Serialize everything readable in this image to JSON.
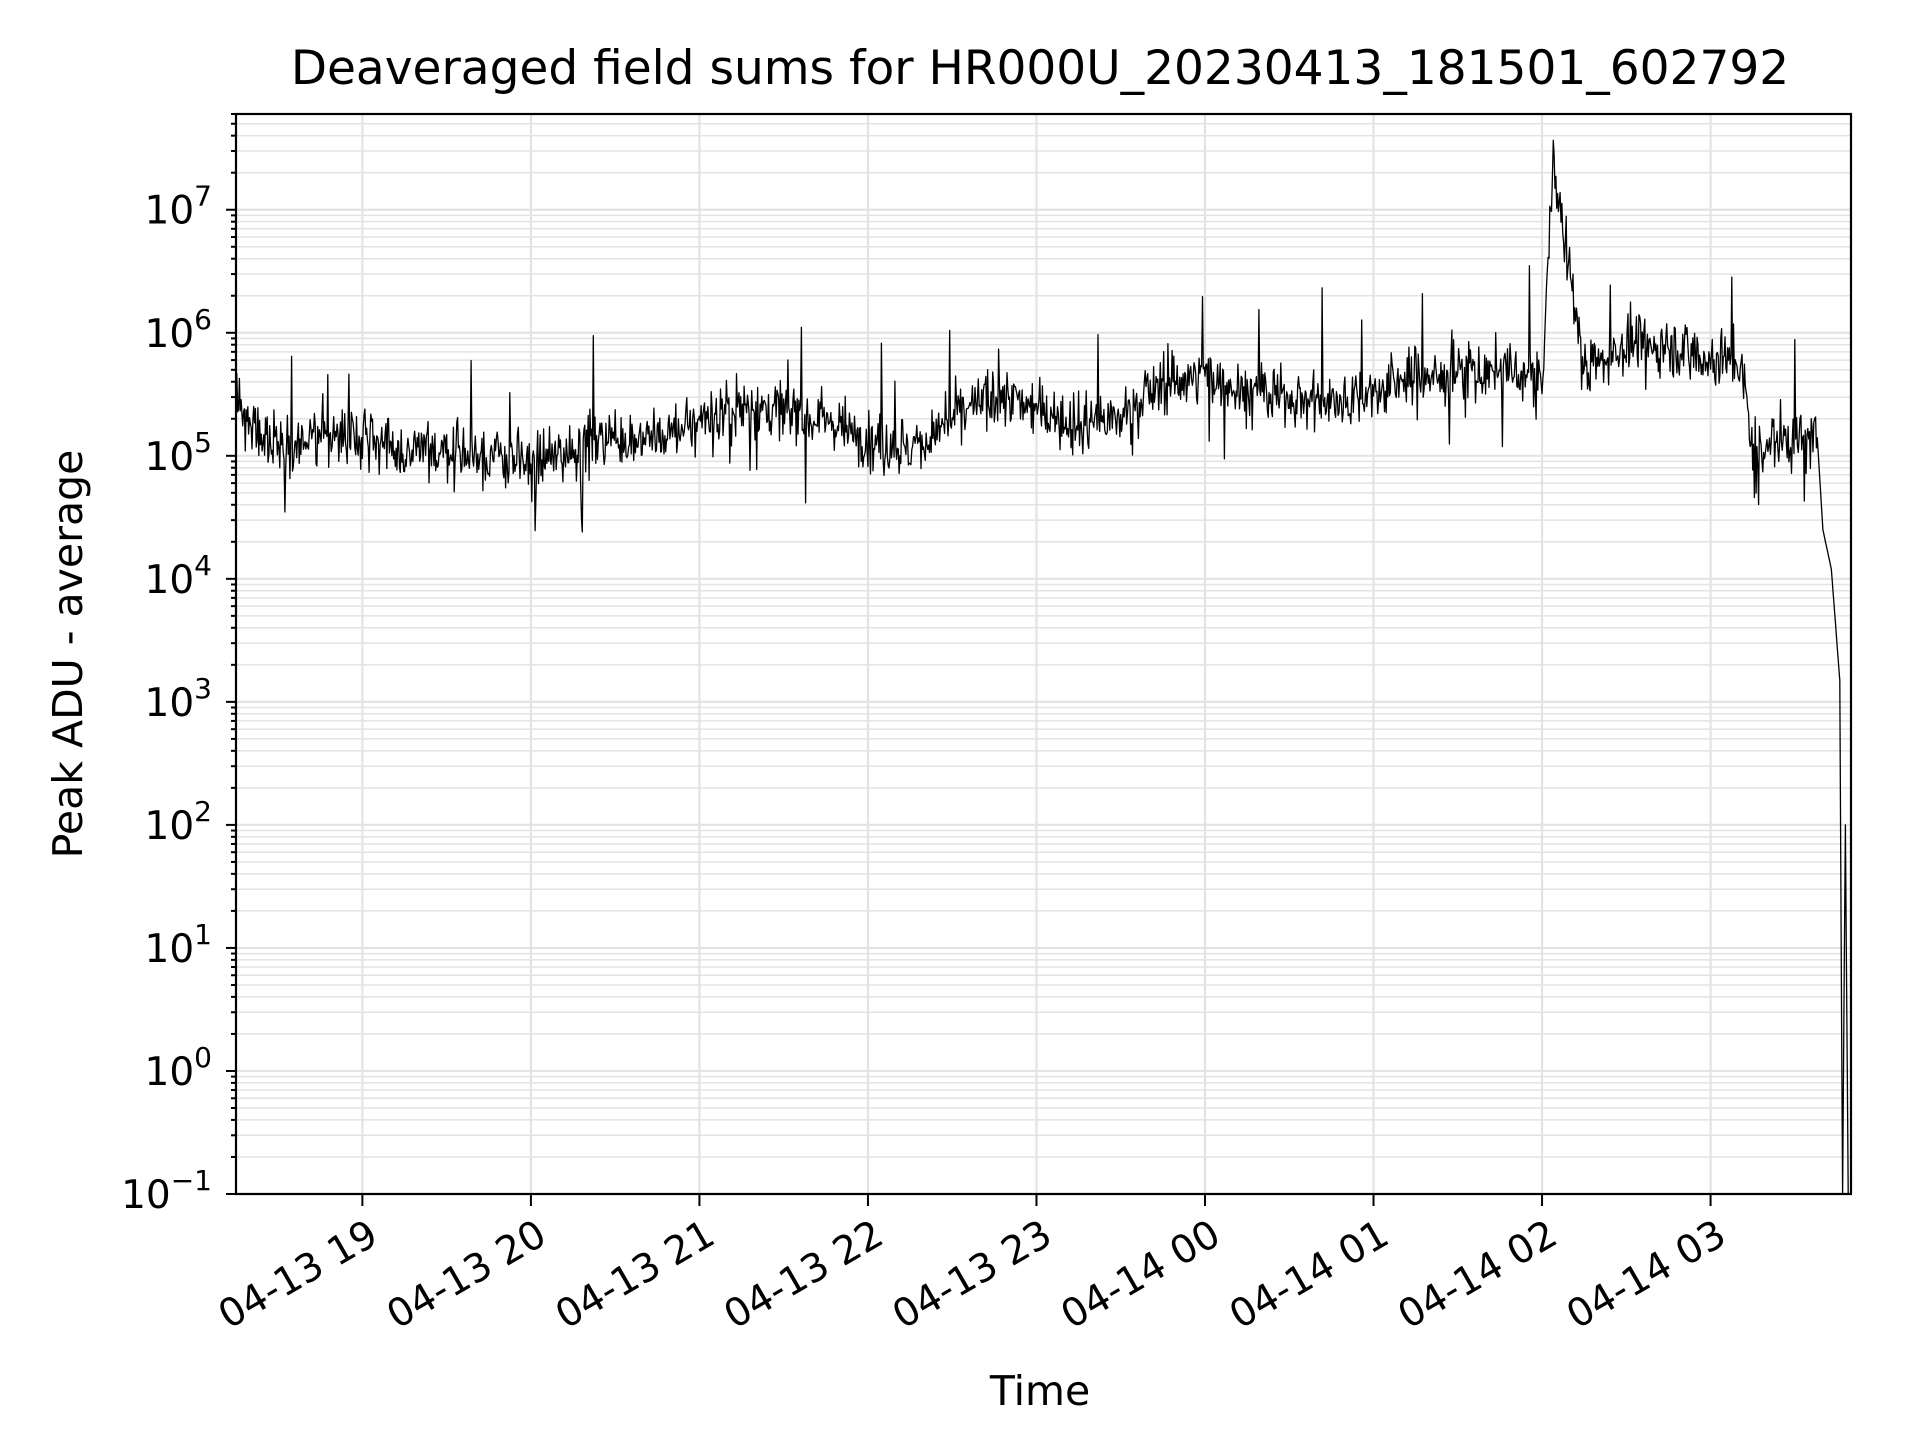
{
  "chart_data": {
    "type": "line",
    "title": "Deaveraged field sums for HR000U_20230413_181501_602792",
    "xlabel": "Time",
    "ylabel": "Peak ADU - average",
    "y_scale": "log",
    "ylim": [
      0.1,
      60000000
    ],
    "xlim": [
      "04-13 18:15",
      "04-14 03:50"
    ],
    "grid": true,
    "x_ticks": [
      "04-13 19",
      "04-13 20",
      "04-13 21",
      "04-13 22",
      "04-13 23",
      "04-14 00",
      "04-14 01",
      "04-14 02",
      "04-14 03"
    ],
    "y_ticks": [
      {
        "base": "10",
        "exp": "−1",
        "value": 0.1
      },
      {
        "base": "10",
        "exp": "0",
        "value": 1
      },
      {
        "base": "10",
        "exp": "1",
        "value": 10
      },
      {
        "base": "10",
        "exp": "2",
        "value": 100
      },
      {
        "base": "10",
        "exp": "3",
        "value": 1000
      },
      {
        "base": "10",
        "exp": "4",
        "value": 10000
      },
      {
        "base": "10",
        "exp": "5",
        "value": 100000
      },
      {
        "base": "10",
        "exp": "6",
        "value": 1000000
      },
      {
        "base": "10",
        "exp": "7",
        "value": 10000000
      }
    ],
    "series": [
      {
        "color": "#000000",
        "points": [
          [
            "04-13 18:15",
            250000
          ],
          [
            "04-13 18:30",
            120000
          ],
          [
            "04-13 18:45",
            140000
          ],
          [
            "04-13 19:00",
            160000
          ],
          [
            "04-13 19:15",
            100000
          ],
          [
            "04-13 19:30",
            110000
          ],
          [
            "04-13 19:45",
            100000
          ],
          [
            "04-13 20:00",
            80000
          ],
          [
            "04-13 20:15",
            110000
          ],
          [
            "04-13 20:30",
            150000
          ],
          [
            "04-13 20:45",
            130000
          ],
          [
            "04-13 21:00",
            200000
          ],
          [
            "04-13 21:15",
            250000
          ],
          [
            "04-13 21:30",
            230000
          ],
          [
            "04-13 21:45",
            200000
          ],
          [
            "04-13 22:00",
            140000
          ],
          [
            "04-13 22:15",
            110000
          ],
          [
            "04-13 22:30",
            200000
          ],
          [
            "04-13 22:45",
            300000
          ],
          [
            "04-13 23:00",
            250000
          ],
          [
            "04-13 23:15",
            180000
          ],
          [
            "04-13 23:30",
            200000
          ],
          [
            "04-13 23:45",
            400000
          ],
          [
            "04-14 00:00",
            450000
          ],
          [
            "04-14 00:15",
            350000
          ],
          [
            "04-14 00:30",
            300000
          ],
          [
            "04-14 00:45",
            280000
          ],
          [
            "04-14 01:00",
            320000
          ],
          [
            "04-14 01:15",
            450000
          ],
          [
            "04-14 01:30",
            450000
          ],
          [
            "04-14 01:45",
            500000
          ],
          [
            "04-14 02:00",
            400000
          ],
          [
            "04-14 02:04",
            24000000
          ],
          [
            "04-14 02:15",
            500000
          ],
          [
            "04-14 02:30",
            800000
          ],
          [
            "04-14 02:45",
            800000
          ],
          [
            "04-14 03:00",
            600000
          ],
          [
            "04-14 03:10",
            600000
          ],
          [
            "04-14 03:15",
            130000
          ],
          [
            "04-14 03:30",
            130000
          ],
          [
            "04-14 03:38",
            140000
          ],
          [
            "04-14 03:40",
            25000
          ],
          [
            "04-14 03:43",
            12000
          ],
          [
            "04-14 03:46",
            1500
          ],
          [
            "04-14 03:47",
            0.1
          ],
          [
            "04-14 03:48",
            100
          ],
          [
            "04-14 03:49",
            0.1
          ]
        ]
      }
    ]
  }
}
